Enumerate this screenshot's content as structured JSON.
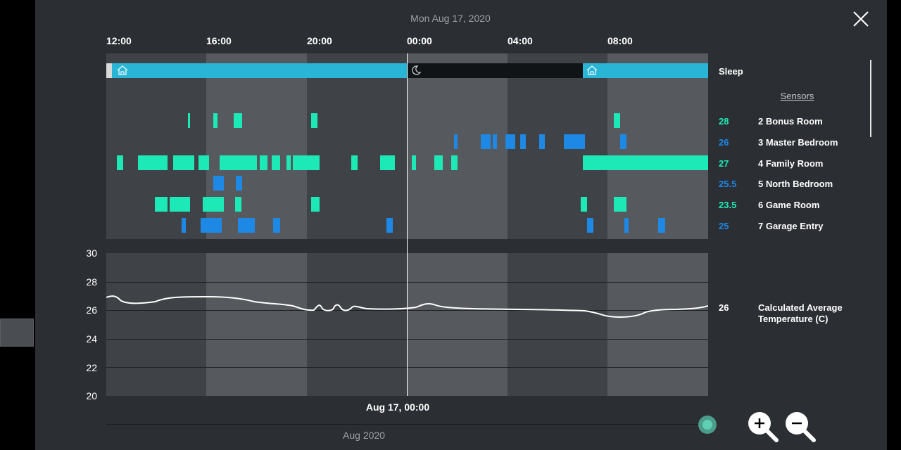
{
  "header": {
    "date": "Mon Aug 17, 2020"
  },
  "time_axis": {
    "labels": [
      "12:00",
      "16:00",
      "20:00",
      "00:00",
      "04:00",
      "08:00"
    ]
  },
  "sleep_row": {
    "label": "Sleep"
  },
  "sensors": {
    "header": "Sensors",
    "items": [
      {
        "value": "28",
        "name": "2 Bonus Room",
        "color": "#1de9b6"
      },
      {
        "value": "26",
        "name": "3 Master Bedroom",
        "color": "#1e88e5"
      },
      {
        "value": "27",
        "name": "4 Family Room",
        "color": "#1de9b6"
      },
      {
        "value": "25.5",
        "name": "5 North Bedroom",
        "color": "#1e88e5"
      },
      {
        "value": "23.5",
        "name": "6 Game Room",
        "color": "#1de9b6"
      },
      {
        "value": "25",
        "name": "7 Garage Entry",
        "color": "#1e88e5"
      }
    ]
  },
  "temperature": {
    "y_ticks": [
      "30",
      "28",
      "26",
      "24",
      "22",
      "20"
    ],
    "current_value": "26",
    "label": "Calculated Average Temperature (C)"
  },
  "cursor": {
    "label": "Aug 17, 00:00"
  },
  "scrubber": {
    "month_label": "Aug 2020"
  },
  "colors": {
    "home": "#29b6d6",
    "sleep": "#111417",
    "occupied_a": "#1de9b6",
    "occupied_b": "#1e88e5"
  }
}
